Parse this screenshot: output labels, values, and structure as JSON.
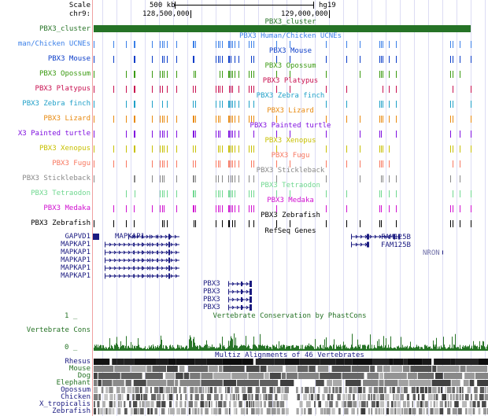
{
  "header": {
    "scale_label": "Scale",
    "scale_value": "500 kb",
    "assembly": "hg19",
    "chrom_label": "chr9:",
    "pos1": "128,500,000",
    "pos2": "129,000,000"
  },
  "cluster": {
    "label": "PBX3_cluster",
    "title": "PBX3_cluster",
    "color": "#267326"
  },
  "ucne_tracks": [
    {
      "label": "man/Chicken UCNEs",
      "title": "PBX3 Human/Chicken UCNEs",
      "color": "#3a7fe8"
    },
    {
      "label": "PBX3 Mouse",
      "title": "PBX3 Mouse",
      "color": "#0a3cc8"
    },
    {
      "label": "PBX3 Opossum",
      "title": "PBX3 Opossum",
      "color": "#3a9a10"
    },
    {
      "label": "PBX3 Platypus",
      "title": "PBX3 Platypus",
      "color": "#c81050"
    },
    {
      "label": "PBX3 Zebra finch",
      "title": "PBX3 Zebra finch",
      "color": "#20a0c8"
    },
    {
      "label": "PBX3 Lizard",
      "title": "PBX3 Lizard",
      "color": "#e88a10"
    },
    {
      "label": "X3 Painted turtle",
      "title": "PBX3 Painted turtle",
      "color": "#8010e0"
    },
    {
      "label": "PBX3 Xenopus",
      "title": "PBX3 Xenopus",
      "color": "#c8c000"
    },
    {
      "label": "PBX3 Fugu",
      "title": "PBX3 Fugu",
      "color": "#f87860"
    },
    {
      "label": "PBX3 Stickleback",
      "title": "PBX3 Stickleback",
      "color": "#888888"
    },
    {
      "label": "PBX3 Tetraodon",
      "title": "PBX3 Tetraodon",
      "color": "#70d890"
    },
    {
      "label": "PBX3 Medaka",
      "title": "PBX3 Medaka",
      "color": "#d010d0"
    },
    {
      "label": "PBX3 Zebrafish",
      "title": "PBX3 Zebrafish",
      "color": "#000000"
    }
  ],
  "refseq": {
    "title": "RefSeq Genes",
    "color": "#1a1a80",
    "genes": [
      {
        "left_label": "GAPVD1",
        "inline_label": "MAPKAP1"
      },
      {
        "left_label": "MAPKAP1"
      },
      {
        "left_label": "MAPKAP1"
      },
      {
        "left_label": "MAPKAP1"
      },
      {
        "left_label": "MAPKAP1"
      },
      {
        "left_label": "MAPKAP1"
      },
      {
        "inline_label": "PBX3"
      },
      {
        "inline_label": "PBX3"
      },
      {
        "inline_label": "PBX3"
      },
      {
        "inline_label": "PBX3"
      }
    ],
    "fam1": "FAM125B",
    "fam2": "FAM125B",
    "nron": "NRON"
  },
  "conservation": {
    "title": "Vertebrate Conservation by PhastCons",
    "label": "Vertebrate Cons",
    "ymax": "1 _",
    "ymin": "0 _",
    "color": "#267326"
  },
  "multiz": {
    "title": "Multiz Alignments of 46 Vertebrates",
    "species": [
      {
        "name": "Rhesus",
        "color": "#1a1a80"
      },
      {
        "name": "Mouse",
        "color": "#267326"
      },
      {
        "name": "Dog",
        "color": "#267326"
      },
      {
        "name": "Elephant",
        "color": "#267326"
      },
      {
        "name": "Opossum",
        "color": "#1a1a80"
      },
      {
        "name": "Chicken",
        "color": "#1a1a80"
      },
      {
        "name": "X_tropicalis",
        "color": "#1a1a80"
      },
      {
        "name": "Zebrafish",
        "color": "#1a1a80"
      }
    ]
  }
}
